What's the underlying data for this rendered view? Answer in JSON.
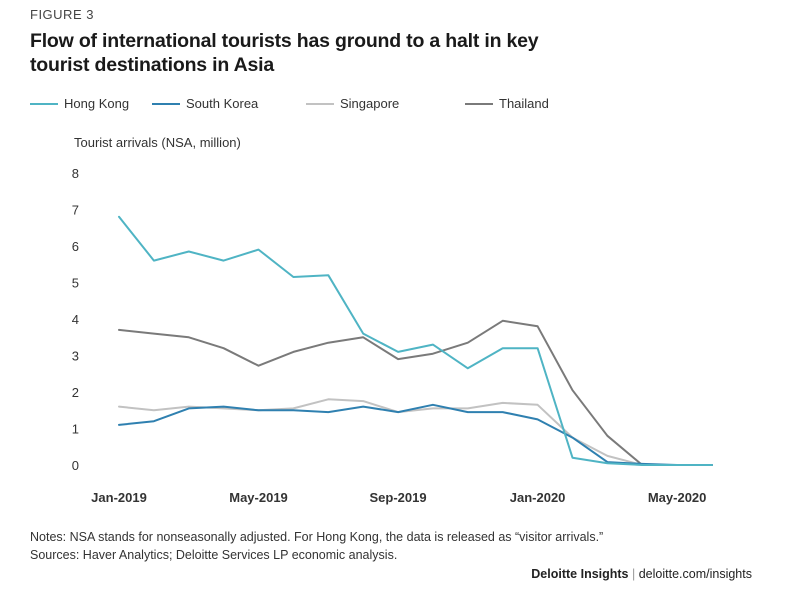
{
  "figure_label": "FIGURE 3",
  "title": "Flow of international tourists has ground to a halt in key tourist destinations in Asia",
  "notes": "Notes: NSA stands for nonseasonally adjusted. For Hong Kong, the data is released as “visitor arrivals.”",
  "sources": "Sources: Haver Analytics; Deloitte Services LP economic analysis.",
  "footer": {
    "brand": "Deloitte Insights",
    "separator": "|",
    "url": "deloitte.com/insights"
  },
  "chart_data": {
    "type": "line",
    "ylabel": "Tourist arrivals (NSA, million)",
    "ylim": [
      0,
      8
    ],
    "yticks": [
      0,
      1,
      2,
      3,
      4,
      5,
      6,
      7,
      8
    ],
    "grid": false,
    "legend_position": "top-left",
    "x": [
      "Jan-2019",
      "Feb-2019",
      "Mar-2019",
      "Apr-2019",
      "May-2019",
      "Jun-2019",
      "Jul-2019",
      "Aug-2019",
      "Sep-2019",
      "Oct-2019",
      "Nov-2019",
      "Dec-2019",
      "Jan-2020",
      "Feb-2020",
      "Mar-2020",
      "Apr-2020",
      "May-2020",
      "Jun-2020"
    ],
    "xtick_labels": [
      "Jan-2019",
      "May-2019",
      "Sep-2019",
      "Jan-2020",
      "May-2020"
    ],
    "xtick_positions": [
      "Jan-2019",
      "May-2019",
      "Sep-2019",
      "Jan-2020",
      "May-2020"
    ],
    "series": [
      {
        "name": "Hong Kong",
        "color": "#4fb4c4",
        "values": [
          6.8,
          5.6,
          5.85,
          5.6,
          5.9,
          5.15,
          5.2,
          3.6,
          3.1,
          3.3,
          2.65,
          3.2,
          3.2,
          0.2,
          0.05,
          0.0,
          0.0,
          0.0
        ]
      },
      {
        "name": "South Korea",
        "color": "#2f80b0",
        "values": [
          1.1,
          1.2,
          1.55,
          1.6,
          1.5,
          1.5,
          1.45,
          1.6,
          1.45,
          1.65,
          1.45,
          1.45,
          1.25,
          0.75,
          0.08,
          0.03,
          0.0,
          0.0
        ]
      },
      {
        "name": "Singapore",
        "color": "#c2c2c2",
        "values": [
          1.6,
          1.5,
          1.6,
          1.55,
          1.5,
          1.55,
          1.8,
          1.75,
          1.45,
          1.55,
          1.55,
          1.7,
          1.65,
          0.75,
          0.25,
          0.0,
          0.0,
          0.0
        ]
      },
      {
        "name": "Thailand",
        "color": "#7a7a7a",
        "values": [
          3.7,
          3.6,
          3.5,
          3.2,
          2.72,
          3.1,
          3.35,
          3.5,
          2.9,
          3.05,
          3.35,
          3.95,
          3.8,
          2.05,
          0.8,
          0.0,
          0.0,
          0.0
        ]
      }
    ]
  }
}
